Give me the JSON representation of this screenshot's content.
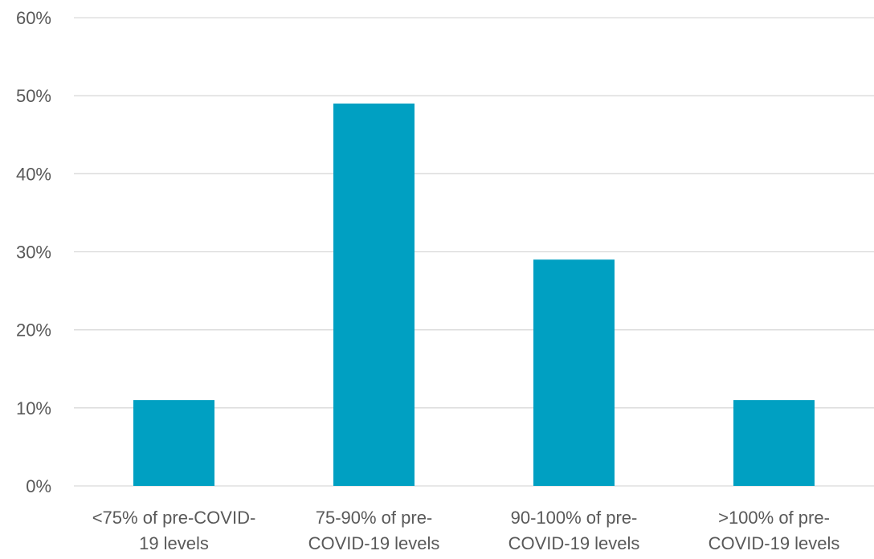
{
  "chart_data": {
    "type": "bar",
    "categories": [
      [
        "<75% of pre-COVID-",
        "19 levels"
      ],
      [
        "75-90% of pre-",
        "COVID-19 levels"
      ],
      [
        "90-100% of pre-",
        "COVID-19 levels"
      ],
      [
        ">100% of pre-",
        "COVID-19 levels"
      ]
    ],
    "values": [
      11,
      49,
      29,
      11
    ],
    "ylim": [
      0,
      60
    ],
    "yticks": [
      0,
      10,
      20,
      30,
      40,
      50,
      60
    ],
    "ytick_labels": [
      "0%",
      "10%",
      "20%",
      "30%",
      "40%",
      "50%",
      "60%"
    ],
    "title": "",
    "xlabel": "",
    "ylabel": "",
    "grid": true,
    "bar_color": "#00A0C2"
  }
}
